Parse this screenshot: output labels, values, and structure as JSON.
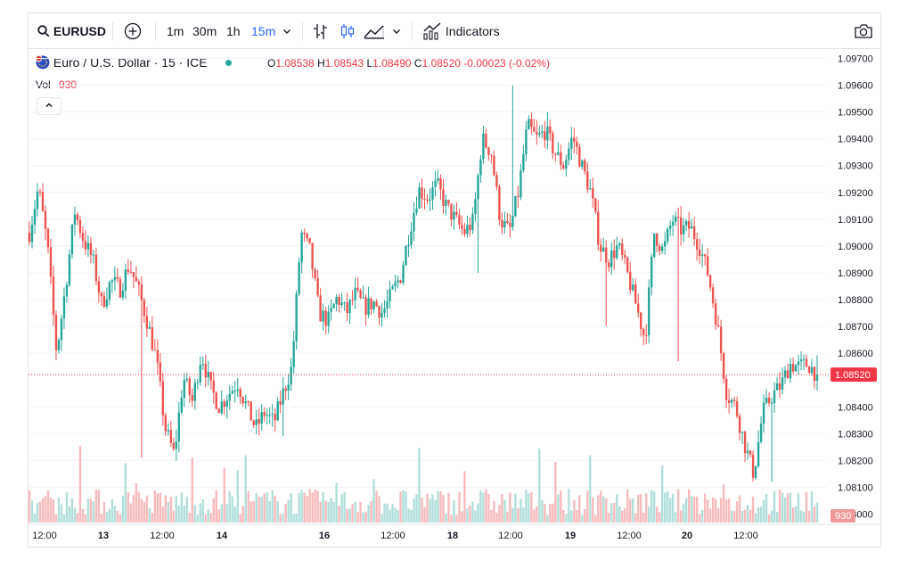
{
  "toolbar": {
    "symbol": "EURUSD",
    "intervals": [
      "1m",
      "30m",
      "1h",
      "15m"
    ],
    "selected_interval": "15m",
    "indicators_label": "Indicators"
  },
  "legend": {
    "title": "Euro / U.S. Dollar · 15 · ICE",
    "open_label": "O",
    "open": "1.08538",
    "high_label": "H",
    "high": "1.08543",
    "low_label": "L",
    "low": "1.08490",
    "close_label": "C",
    "close": "1.08520",
    "change": "-0.00023 (-0.02%)",
    "vol_label": "Vol",
    "vol_value": "930"
  },
  "colors": {
    "up": "#26a69a",
    "down": "#ef5350",
    "accent": "#2962ff",
    "price_tag": "#f23645"
  },
  "chart_data": {
    "type": "candlestick",
    "price_axis": {
      "ticks": [
        "1.09700",
        "1.09600",
        "1.09500",
        "1.09400",
        "1.09300",
        "1.09200",
        "1.09100",
        "1.09000",
        "1.08900",
        "1.08800",
        "1.08700",
        "1.08600",
        "1.08400",
        "1.08300",
        "1.08200",
        "1.08100",
        "1.08000"
      ],
      "range": [
        1.07965,
        1.09735
      ],
      "last_price": "1.08520"
    },
    "time_axis": {
      "labels": [
        "12:00",
        "13",
        "12:00",
        "14",
        "16",
        "12:00",
        "18",
        "12:00",
        "19",
        "12:00",
        "20",
        "12:00"
      ]
    },
    "volume_last": "930",
    "path": [
      [
        0,
        1.0905
      ],
      [
        1,
        1.0922
      ],
      [
        2,
        1.09
      ],
      [
        3,
        1.086
      ],
      [
        4,
        1.0885
      ],
      [
        5,
        1.0913
      ],
      [
        6,
        1.0902
      ],
      [
        7,
        1.0895
      ],
      [
        8,
        1.0878
      ],
      [
        9,
        1.0887
      ],
      [
        10,
        1.0884
      ],
      [
        11,
        1.0893
      ],
      [
        12,
        1.0884
      ],
      [
        13,
        1.0872
      ],
      [
        14,
        1.0858
      ],
      [
        15,
        1.0832
      ],
      [
        16,
        1.0822
      ],
      [
        17,
        1.0851
      ],
      [
        18,
        1.0842
      ],
      [
        19,
        1.086
      ],
      [
        20,
        1.0847
      ],
      [
        21,
        1.084
      ],
      [
        22,
        1.0845
      ],
      [
        23,
        1.0849
      ],
      [
        24,
        1.084
      ],
      [
        25,
        1.0832
      ],
      [
        26,
        1.0838
      ],
      [
        27,
        1.0834
      ],
      [
        28,
        1.0845
      ],
      [
        29,
        1.0855
      ],
      [
        30,
        1.0905
      ],
      [
        31,
        1.0898
      ],
      [
        32,
        1.0875
      ],
      [
        33,
        1.0872
      ],
      [
        34,
        1.0881
      ],
      [
        35,
        1.0875
      ],
      [
        36,
        1.0882
      ],
      [
        37,
        1.0877
      ],
      [
        38,
        1.0879
      ],
      [
        39,
        1.0875
      ],
      [
        40,
        1.0882
      ],
      [
        41,
        1.0889
      ],
      [
        42,
        1.0906
      ],
      [
        43,
        1.0921
      ],
      [
        44,
        1.0918
      ],
      [
        45,
        1.0923
      ],
      [
        46,
        1.0915
      ],
      [
        47,
        1.091
      ],
      [
        48,
        1.0905
      ],
      [
        49,
        1.0909
      ],
      [
        50,
        1.094
      ],
      [
        51,
        1.0935
      ],
      [
        52,
        1.091
      ],
      [
        53,
        1.0905
      ],
      [
        54,
        1.092
      ],
      [
        55,
        1.0945
      ],
      [
        56,
        1.094
      ],
      [
        57,
        1.0943
      ],
      [
        58,
        1.0935
      ],
      [
        59,
        1.093
      ],
      [
        60,
        1.0941
      ],
      [
        61,
        1.093
      ],
      [
        62,
        1.092
      ],
      [
        63,
        1.09
      ],
      [
        64,
        1.0895
      ],
      [
        65,
        1.09
      ],
      [
        66,
        1.089
      ],
      [
        67,
        1.0878
      ],
      [
        68,
        1.0865
      ],
      [
        69,
        1.0905
      ],
      [
        70,
        1.0898
      ],
      [
        71,
        1.091
      ],
      [
        72,
        1.0906
      ],
      [
        73,
        1.0907
      ],
      [
        74,
        1.09
      ],
      [
        75,
        1.0889
      ],
      [
        76,
        1.087
      ],
      [
        77,
        1.0845
      ],
      [
        78,
        1.084
      ],
      [
        79,
        1.0826
      ],
      [
        80,
        1.0815
      ],
      [
        81,
        1.0838
      ],
      [
        82,
        1.0844
      ],
      [
        83,
        1.0848
      ],
      [
        84,
        1.0856
      ],
      [
        85,
        1.0855
      ],
      [
        86,
        1.0856
      ],
      [
        87,
        1.0852
      ]
    ]
  }
}
